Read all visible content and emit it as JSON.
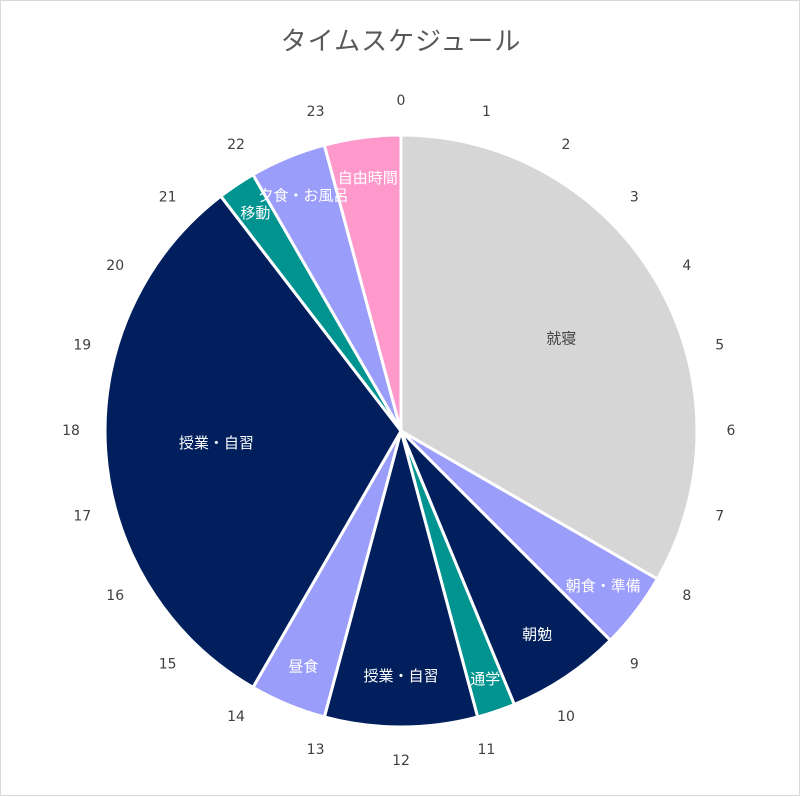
{
  "chart_data": {
    "type": "pie",
    "title": "タイムスケジュール",
    "hour_ticks": [
      "0",
      "1",
      "2",
      "3",
      "4",
      "5",
      "6",
      "7",
      "8",
      "9",
      "10",
      "11",
      "12",
      "13",
      "14",
      "15",
      "16",
      "17",
      "18",
      "19",
      "20",
      "21",
      "22",
      "23"
    ],
    "slices": [
      {
        "label": "就寝",
        "start": 0,
        "end": 8,
        "color": "#d6d6d6",
        "label_color": "#404040"
      },
      {
        "label": "朝食・準備",
        "start": 8,
        "end": 9,
        "color": "#9b9dfa",
        "label_color": "#ffffff"
      },
      {
        "label": "朝勉",
        "start": 9,
        "end": 10.5,
        "color": "#001f5c",
        "label_color": "#ffffff"
      },
      {
        "label": "通学",
        "start": 10.5,
        "end": 11,
        "color": "#009490",
        "label_color": "#ffffff"
      },
      {
        "label": "授業・自習",
        "start": 11,
        "end": 13,
        "color": "#001f5c",
        "label_color": "#ffffff"
      },
      {
        "label": "昼食",
        "start": 13,
        "end": 14,
        "color": "#9b9dfa",
        "label_color": "#ffffff"
      },
      {
        "label": "授業・自習",
        "start": 14,
        "end": 21.5,
        "color": "#001f5c",
        "label_color": "#ffffff"
      },
      {
        "label": "移動",
        "start": 21.5,
        "end": 22,
        "color": "#009490",
        "label_color": "#ffffff"
      },
      {
        "label": "夕食・お風呂",
        "start": 22,
        "end": 23,
        "color": "#9b9dfa",
        "label_color": "#ffffff"
      },
      {
        "label": "自由時間",
        "start": 23,
        "end": 24,
        "color": "#ff99cc",
        "label_color": "#ffffff"
      }
    ]
  }
}
